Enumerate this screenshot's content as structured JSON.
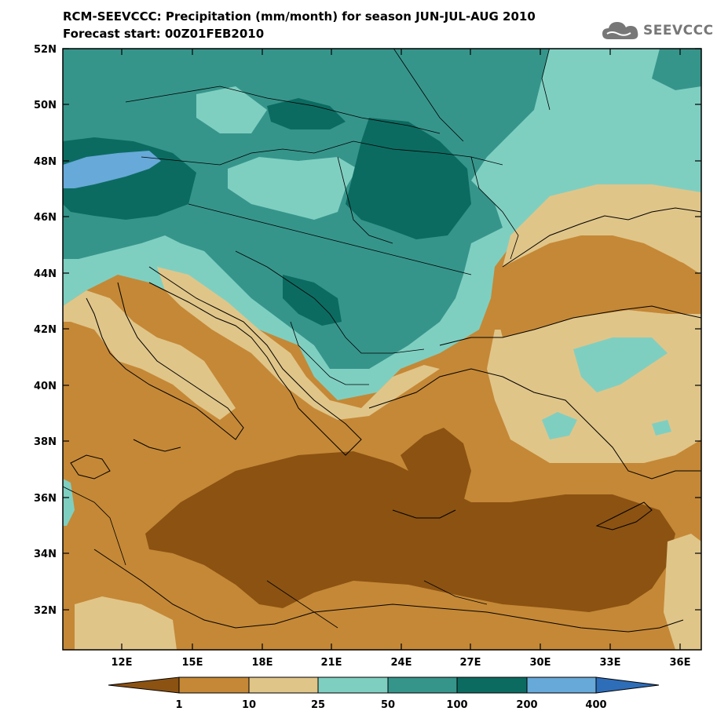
{
  "header": {
    "title_line1": "RCM-SEEVCCC: Precipitation (mm/month) for season JUN-JUL-AUG 2010",
    "title_line2": "Forecast start: 00Z01FEB2010"
  },
  "logo": {
    "text": "SEEVCCC",
    "icon": "cloud-icon"
  },
  "map": {
    "lat_ticks": [
      "52N",
      "50N",
      "48N",
      "46N",
      "44N",
      "42N",
      "40N",
      "38N",
      "36N",
      "34N",
      "32N"
    ],
    "lon_ticks": [
      "12E",
      "15E",
      "18E",
      "21E",
      "24E",
      "27E",
      "30E",
      "33E",
      "36E"
    ]
  },
  "colorbar": {
    "labels": [
      "1",
      "10",
      "25",
      "50",
      "100",
      "200",
      "400"
    ],
    "colors": [
      "#8b5212",
      "#c58836",
      "#e0c589",
      "#7fcfc1",
      "#36958b",
      "#0c6b61",
      "#67a9d9",
      "#2e6db8"
    ]
  },
  "colors": {
    "lt1": "#8b5212",
    "c1_10": "#c58836",
    "c10_25": "#e0c589",
    "c25_50": "#7fcfc1",
    "c50_100": "#36958b",
    "c100_200": "#0c6b61",
    "c200_400": "#67a9d9"
  }
}
